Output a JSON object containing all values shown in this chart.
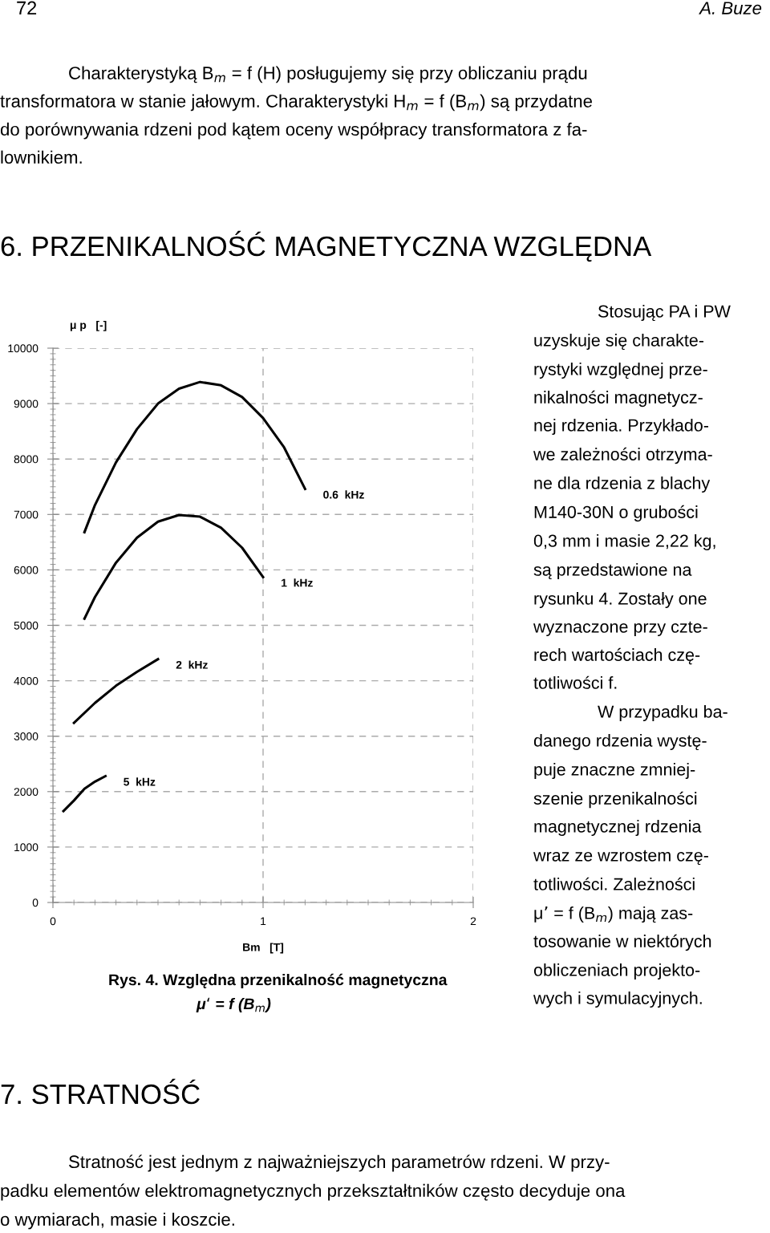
{
  "chart_data": {
    "type": "line",
    "title": "6. PRZENIKALNOŚĆ MAGNETYCZNA WZGLĘDNA",
    "xlabel": "Bm   [T]",
    "ylabel": "μ p   [-]",
    "xlim": [
      0,
      2
    ],
    "xticks": [
      0,
      1,
      2
    ],
    "ylim": [
      0,
      10000
    ],
    "yticks": [
      0,
      1000,
      2000,
      3000,
      4000,
      5000,
      6000,
      7000,
      8000,
      9000,
      10000
    ],
    "grid": true,
    "line_style": "solid",
    "marker": "none",
    "series": [
      {
        "name": "0.6  kHz",
        "color": "#000000",
        "x": [
          0.15,
          0.2,
          0.3,
          0.4,
          0.5,
          0.6,
          0.7,
          0.8,
          0.9,
          1.0,
          1.1,
          1.2
        ],
        "values": [
          6680,
          7170,
          7940,
          8540,
          9000,
          9270,
          9390,
          9330,
          9120,
          8740,
          8210,
          7460
        ]
      },
      {
        "name": "1  kHz",
        "color": "#000000",
        "x": [
          0.15,
          0.2,
          0.3,
          0.4,
          0.5,
          0.6,
          0.7,
          0.8,
          0.9,
          1.0
        ],
        "values": [
          5120,
          5510,
          6130,
          6580,
          6870,
          6990,
          6960,
          6760,
          6400,
          5870
        ]
      },
      {
        "name": "2  kHz",
        "color": "#000000",
        "x": [
          0.1,
          0.2,
          0.3,
          0.4,
          0.5
        ],
        "values": [
          3240,
          3600,
          3910,
          4160,
          4390
        ]
      },
      {
        "name": "5  kHz",
        "color": "#000000",
        "x": [
          0.05,
          0.1,
          0.15,
          0.2,
          0.25
        ],
        "values": [
          1650,
          1840,
          2050,
          2180,
          2280
        ]
      }
    ],
    "annotations": [
      "72",
      "A. Buze",
      "Charakterystyką B$_{m}$ = f (H) posługujemy się przy obliczaniu prądu",
      "transformatora w stanie jałowym. Charakterystyki H$_{m}$ = f (B$_{m}$) są przydatne",
      "do porównywania rdzeni pod kątem oceny współpracy transformatora z fa-",
      "lownikiem.",
      "Stosując PA i PW",
      "uzyskuje się charakte-",
      "rystyki względnej prze-",
      "nikalności magnetycz-",
      "nej rdzenia. Przykłado-",
      "we zależności otrzyma-",
      "ne dla rdzenia z blachy",
      "M140-30N o grubości",
      "0,3 mm i masie 2,22 kg,",
      "są przedstawione na",
      "rysunku 4. Zostały one",
      "wyznaczone przy czte-",
      "rech wartościach czę-",
      "totliwości f.",
      "W przypadku ba-",
      "danego rdzenia wystę-",
      "puje znaczne zmniej-",
      "szenie przenikalności",
      "magnetycznej rdzenia",
      "wraz ze wzrostem czę-",
      "totliwości. Zależności",
      "μ’ = f (B$_{m}$) mają zas-",
      "tosowanie w niektórych",
      "obliczeniach projekto-",
      "wych i symulacyjnych.",
      "Rys. 4. Względna przenikalność magnetyczna",
      "μ‘ = f (B$_{m}$)",
      "7. STRATNOŚĆ",
      "Stratność jest jednym z najważniejszych parametrów rdzeni. W przy-",
      "padku elementów elektromagnetycznych przekształtników często decyduje ona",
      "o wymiarach, masie i koszcie."
    ]
  }
}
